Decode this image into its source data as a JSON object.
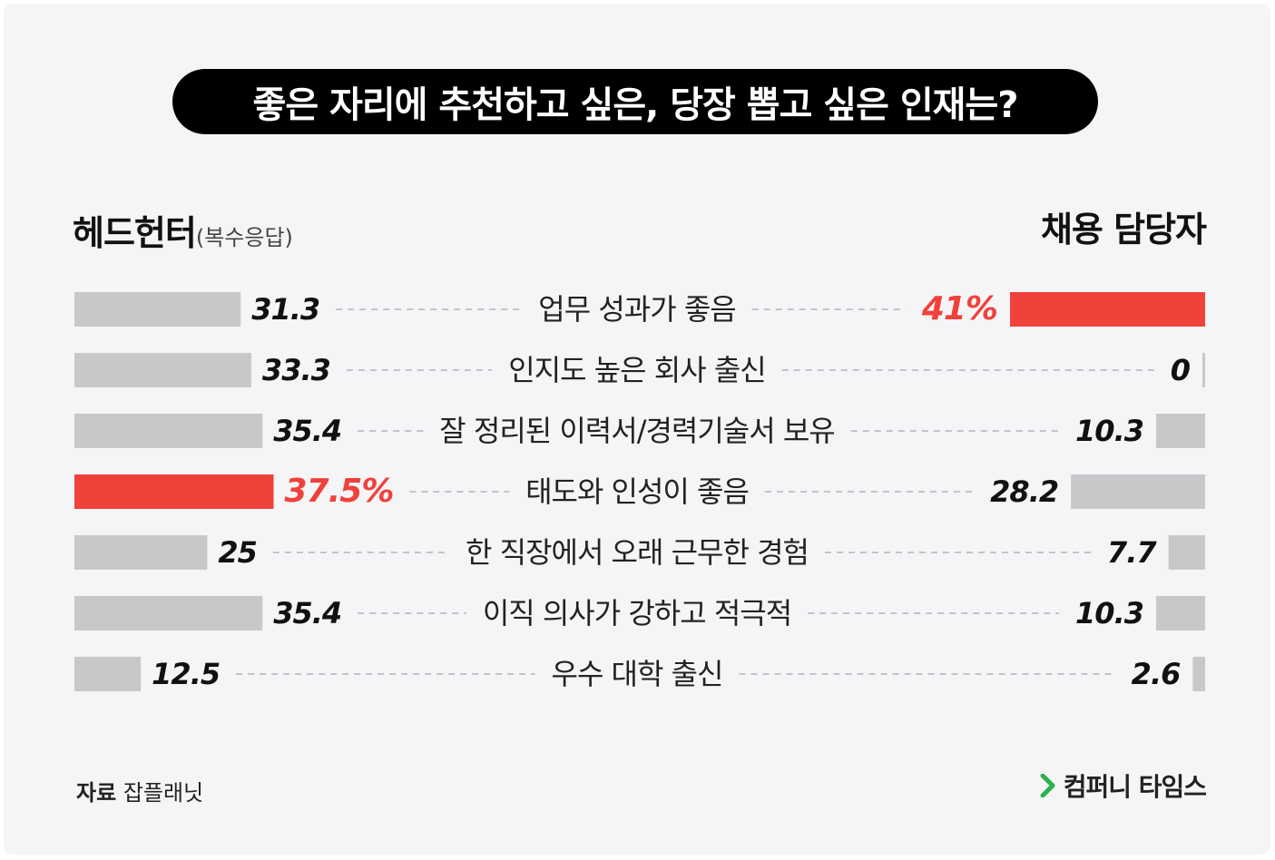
{
  "title": "좋은 자리에 추천하고 싶은, 당장 뽑고 싶은 인재는?",
  "left_header": {
    "label": "헤드헌터",
    "note": "(복수응답)"
  },
  "right_header": {
    "label": "채용 담당자"
  },
  "source": {
    "prefix": "자료",
    "name": "잡플래닛"
  },
  "brand": {
    "name": "컴퍼니 타임스"
  },
  "colors": {
    "highlight": "#f0413a",
    "bar": "#c8c8cb",
    "pill": "#000000",
    "background": "#f5f5f7"
  },
  "chart_data": {
    "type": "bar",
    "orientation": "horizontal-butterfly",
    "categories": [
      "업무 성과가 좋음",
      "인지도 높은 회사 출신",
      "잘 정리된 이력서/경력기술서 보유",
      "태도와 인성이 좋음",
      "한 직장에서 오래 근무한 경험",
      "이직 의사가 강하고 적극적",
      "우수 대학 출신"
    ],
    "series": [
      {
        "name": "헤드헌터",
        "side": "left",
        "values": [
          31.3,
          33.3,
          35.4,
          37.5,
          25,
          35.4,
          12.5
        ],
        "labels": [
          "31.3",
          "33.3",
          "35.4",
          "37.5%",
          "25",
          "35.4",
          "12.5"
        ],
        "highlight_index": 3
      },
      {
        "name": "채용 담당자",
        "side": "right",
        "values": [
          41,
          0,
          10.3,
          28.2,
          7.7,
          10.3,
          2.6
        ],
        "labels": [
          "41%",
          "0",
          "10.3",
          "28.2",
          "7.7",
          "10.3",
          "2.6"
        ],
        "highlight_index": 0
      }
    ],
    "xlim": [
      0,
      41
    ]
  }
}
